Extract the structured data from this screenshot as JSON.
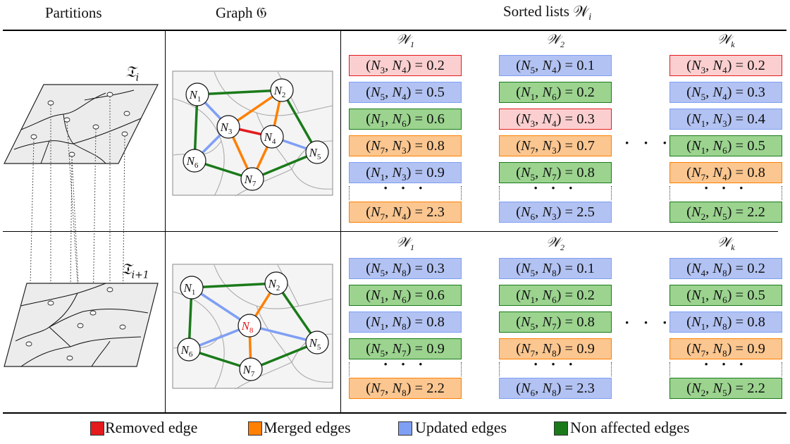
{
  "headers": {
    "partitions": "Partitions",
    "graph": "Graph 𝔊",
    "sorted_lists": "Sorted lists 𝒲",
    "sorted_lists_sub": "i"
  },
  "partition_labels": {
    "top": "𝔗",
    "top_sub": "i",
    "bottom": "𝔗",
    "bottom_sub": "i+1"
  },
  "list_titles": {
    "w1": "𝒲",
    "w1_sub": "1",
    "w2": "𝒲",
    "w2_sub": "2",
    "wk": "𝒲",
    "wk_sub": "k"
  },
  "colors": {
    "removed": "#e41a1c",
    "merged": "#ff7f00",
    "updated": "#7f9ff5",
    "non_affected": "#1a7a1a",
    "removed_fill": "#fbcfd0",
    "merged_fill": "#fbc68f",
    "updated_fill": "#b2c2f2",
    "non_affected_fill": "#9bd38f"
  },
  "top_lists": {
    "w1": [
      {
        "text": "(N3, N4) = 0.2",
        "a": "3",
        "b": "4",
        "v": "0.2",
        "kind": "removed"
      },
      {
        "text": "(N5, N4) = 0.5",
        "a": "5",
        "b": "4",
        "v": "0.5",
        "kind": "updated"
      },
      {
        "text": "(N1, N6) = 0.6",
        "a": "1",
        "b": "6",
        "v": "0.6",
        "kind": "non_affected"
      },
      {
        "text": "(N7, N3) = 0.8",
        "a": "7",
        "b": "3",
        "v": "0.8",
        "kind": "merged"
      },
      {
        "text": "(N1, N3) = 0.9",
        "a": "1",
        "b": "3",
        "v": "0.9",
        "kind": "updated"
      },
      {
        "text": "(N7, N4) = 2.3",
        "a": "7",
        "b": "4",
        "v": "2.3",
        "kind": "merged"
      }
    ],
    "w2": [
      {
        "a": "5",
        "b": "4",
        "v": "0.1",
        "kind": "updated"
      },
      {
        "a": "1",
        "b": "6",
        "v": "0.2",
        "kind": "non_affected"
      },
      {
        "a": "3",
        "b": "4",
        "v": "0.3",
        "kind": "removed"
      },
      {
        "a": "7",
        "b": "3",
        "v": "0.7",
        "kind": "merged"
      },
      {
        "a": "5",
        "b": "7",
        "v": "0.8",
        "kind": "non_affected"
      },
      {
        "a": "6",
        "b": "3",
        "v": "2.5",
        "kind": "updated"
      }
    ],
    "wk": [
      {
        "a": "3",
        "b": "4",
        "v": "0.2",
        "kind": "removed"
      },
      {
        "a": "5",
        "b": "4",
        "v": "0.3",
        "kind": "updated"
      },
      {
        "a": "1",
        "b": "3",
        "v": "0.4",
        "kind": "updated"
      },
      {
        "a": "1",
        "b": "6",
        "v": "0.5",
        "kind": "non_affected"
      },
      {
        "a": "7",
        "b": "4",
        "v": "0.8",
        "kind": "merged"
      },
      {
        "a": "2",
        "b": "5",
        "v": "2.2",
        "kind": "non_affected"
      }
    ]
  },
  "bottom_lists": {
    "w1": [
      {
        "a": "5",
        "b": "8",
        "v": "0.3",
        "kind": "updated"
      },
      {
        "a": "1",
        "b": "6",
        "v": "0.6",
        "kind": "non_affected"
      },
      {
        "a": "1",
        "b": "8",
        "v": "0.8",
        "kind": "updated"
      },
      {
        "a": "5",
        "b": "7",
        "v": "0.9",
        "kind": "non_affected"
      },
      {
        "a": "7",
        "b": "8",
        "v": "2.2",
        "kind": "merged"
      }
    ],
    "w2": [
      {
        "a": "5",
        "b": "8",
        "v": "0.1",
        "kind": "updated"
      },
      {
        "a": "1",
        "b": "6",
        "v": "0.2",
        "kind": "non_affected"
      },
      {
        "a": "5",
        "b": "7",
        "v": "0.8",
        "kind": "non_affected"
      },
      {
        "a": "7",
        "b": "8",
        "v": "0.9",
        "kind": "merged"
      },
      {
        "a": "6",
        "b": "8",
        "v": "2.3",
        "kind": "updated"
      }
    ],
    "wk": [
      {
        "a": "4",
        "b": "8",
        "v": "0.2",
        "kind": "updated"
      },
      {
        "a": "1",
        "b": "6",
        "v": "0.5",
        "kind": "non_affected"
      },
      {
        "a": "1",
        "b": "8",
        "v": "0.8",
        "kind": "updated"
      },
      {
        "a": "7",
        "b": "8",
        "v": "0.9",
        "kind": "merged"
      },
      {
        "a": "2",
        "b": "5",
        "v": "2.2",
        "kind": "non_affected"
      }
    ]
  },
  "ellipsis": "· · ·",
  "graph_top": {
    "nodes": [
      "1",
      "2",
      "3",
      "4",
      "5",
      "6",
      "7"
    ]
  },
  "graph_bottom": {
    "nodes": [
      "1",
      "2",
      "8",
      "5",
      "6",
      "7"
    ]
  },
  "node_prefix": "N",
  "legend": {
    "removed": "Removed edge",
    "merged": "Merged edges",
    "updated": "Updated edges",
    "non_affected": "Non affected edges"
  }
}
